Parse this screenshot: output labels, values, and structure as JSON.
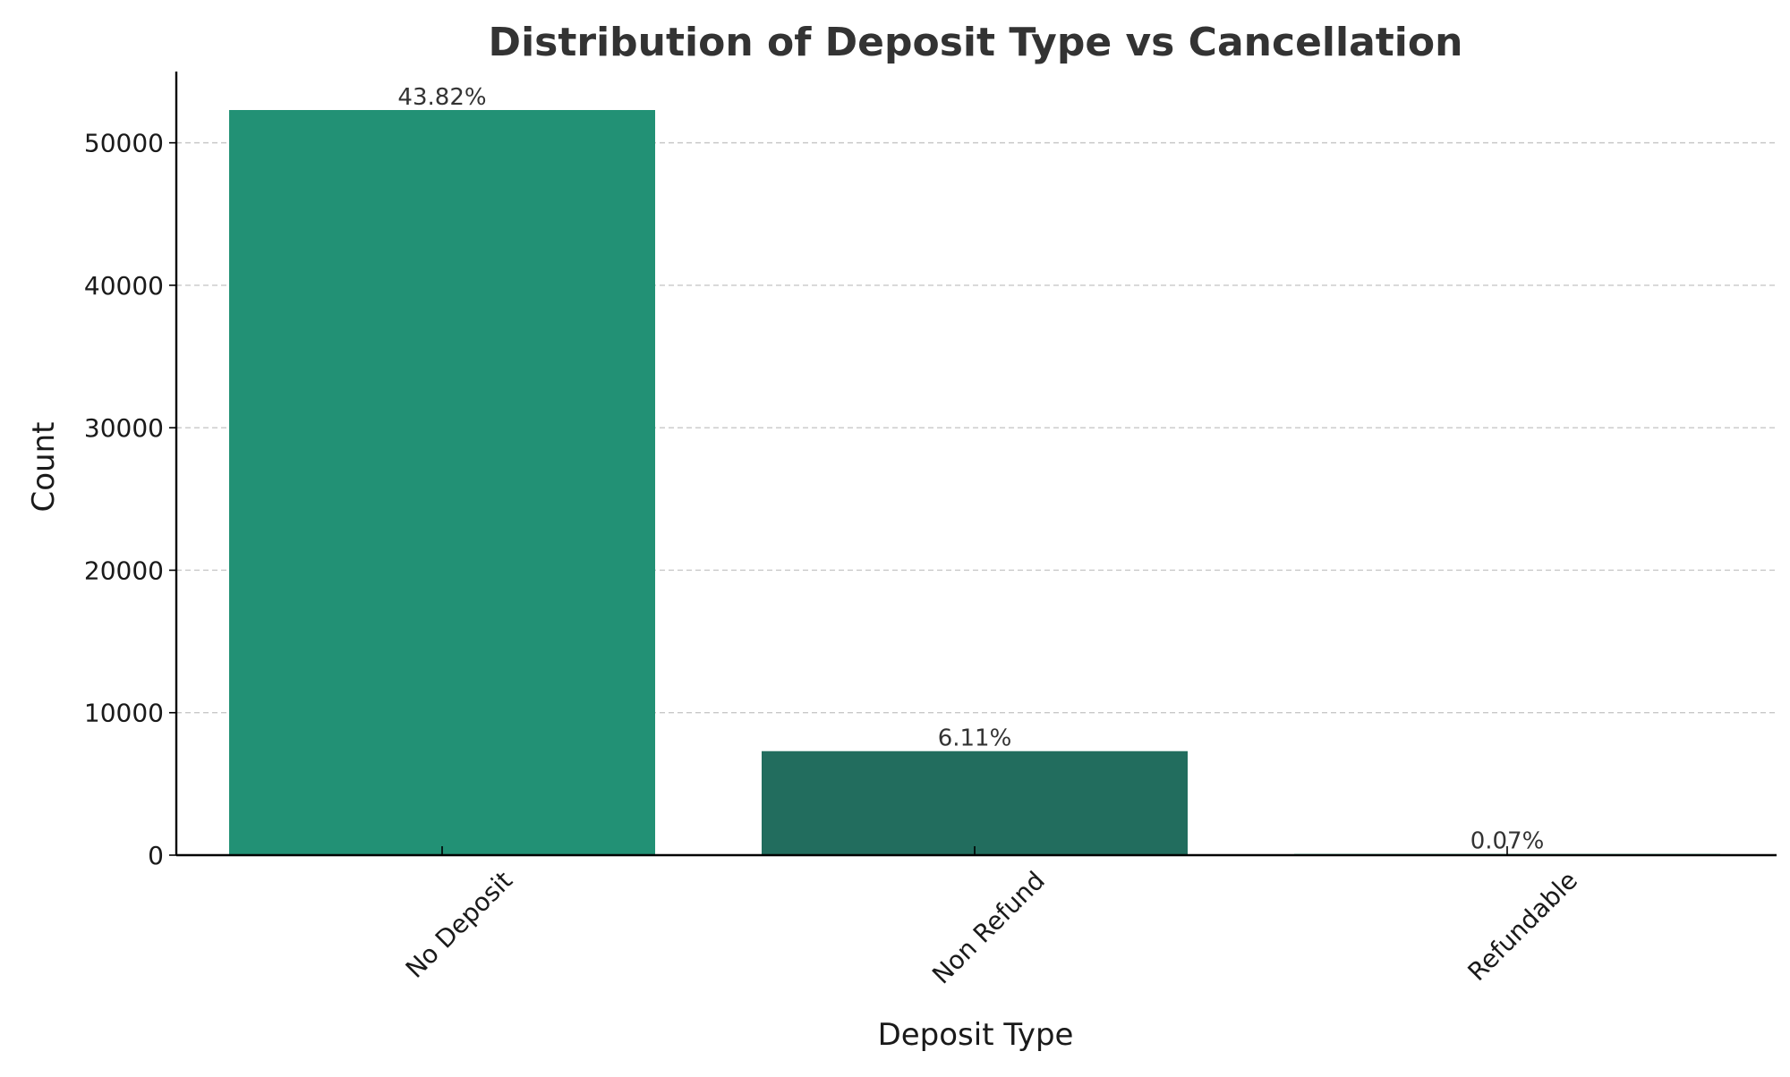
{
  "chart_data": {
    "type": "bar",
    "title": "Distribution of Deposit Type vs Cancellation",
    "xlabel": "Deposit Type",
    "ylabel": "Count",
    "categories": [
      "No Deposit",
      "Non Refund",
      "Refundable"
    ],
    "values": [
      52300,
      7300,
      85
    ],
    "data_labels": [
      "43.82%",
      "6.11%",
      "0.07%"
    ],
    "colors": [
      "#229175",
      "#226d5e",
      "#21c48b"
    ],
    "ylim": [
      0,
      55000
    ],
    "yticks": [
      0,
      10000,
      20000,
      30000,
      40000,
      50000
    ],
    "ytick_labels": [
      "0",
      "10000",
      "20000",
      "30000",
      "40000",
      "50000"
    ],
    "grid": true,
    "grid_axis": "y",
    "xtick_rotation": "45 degrees"
  }
}
